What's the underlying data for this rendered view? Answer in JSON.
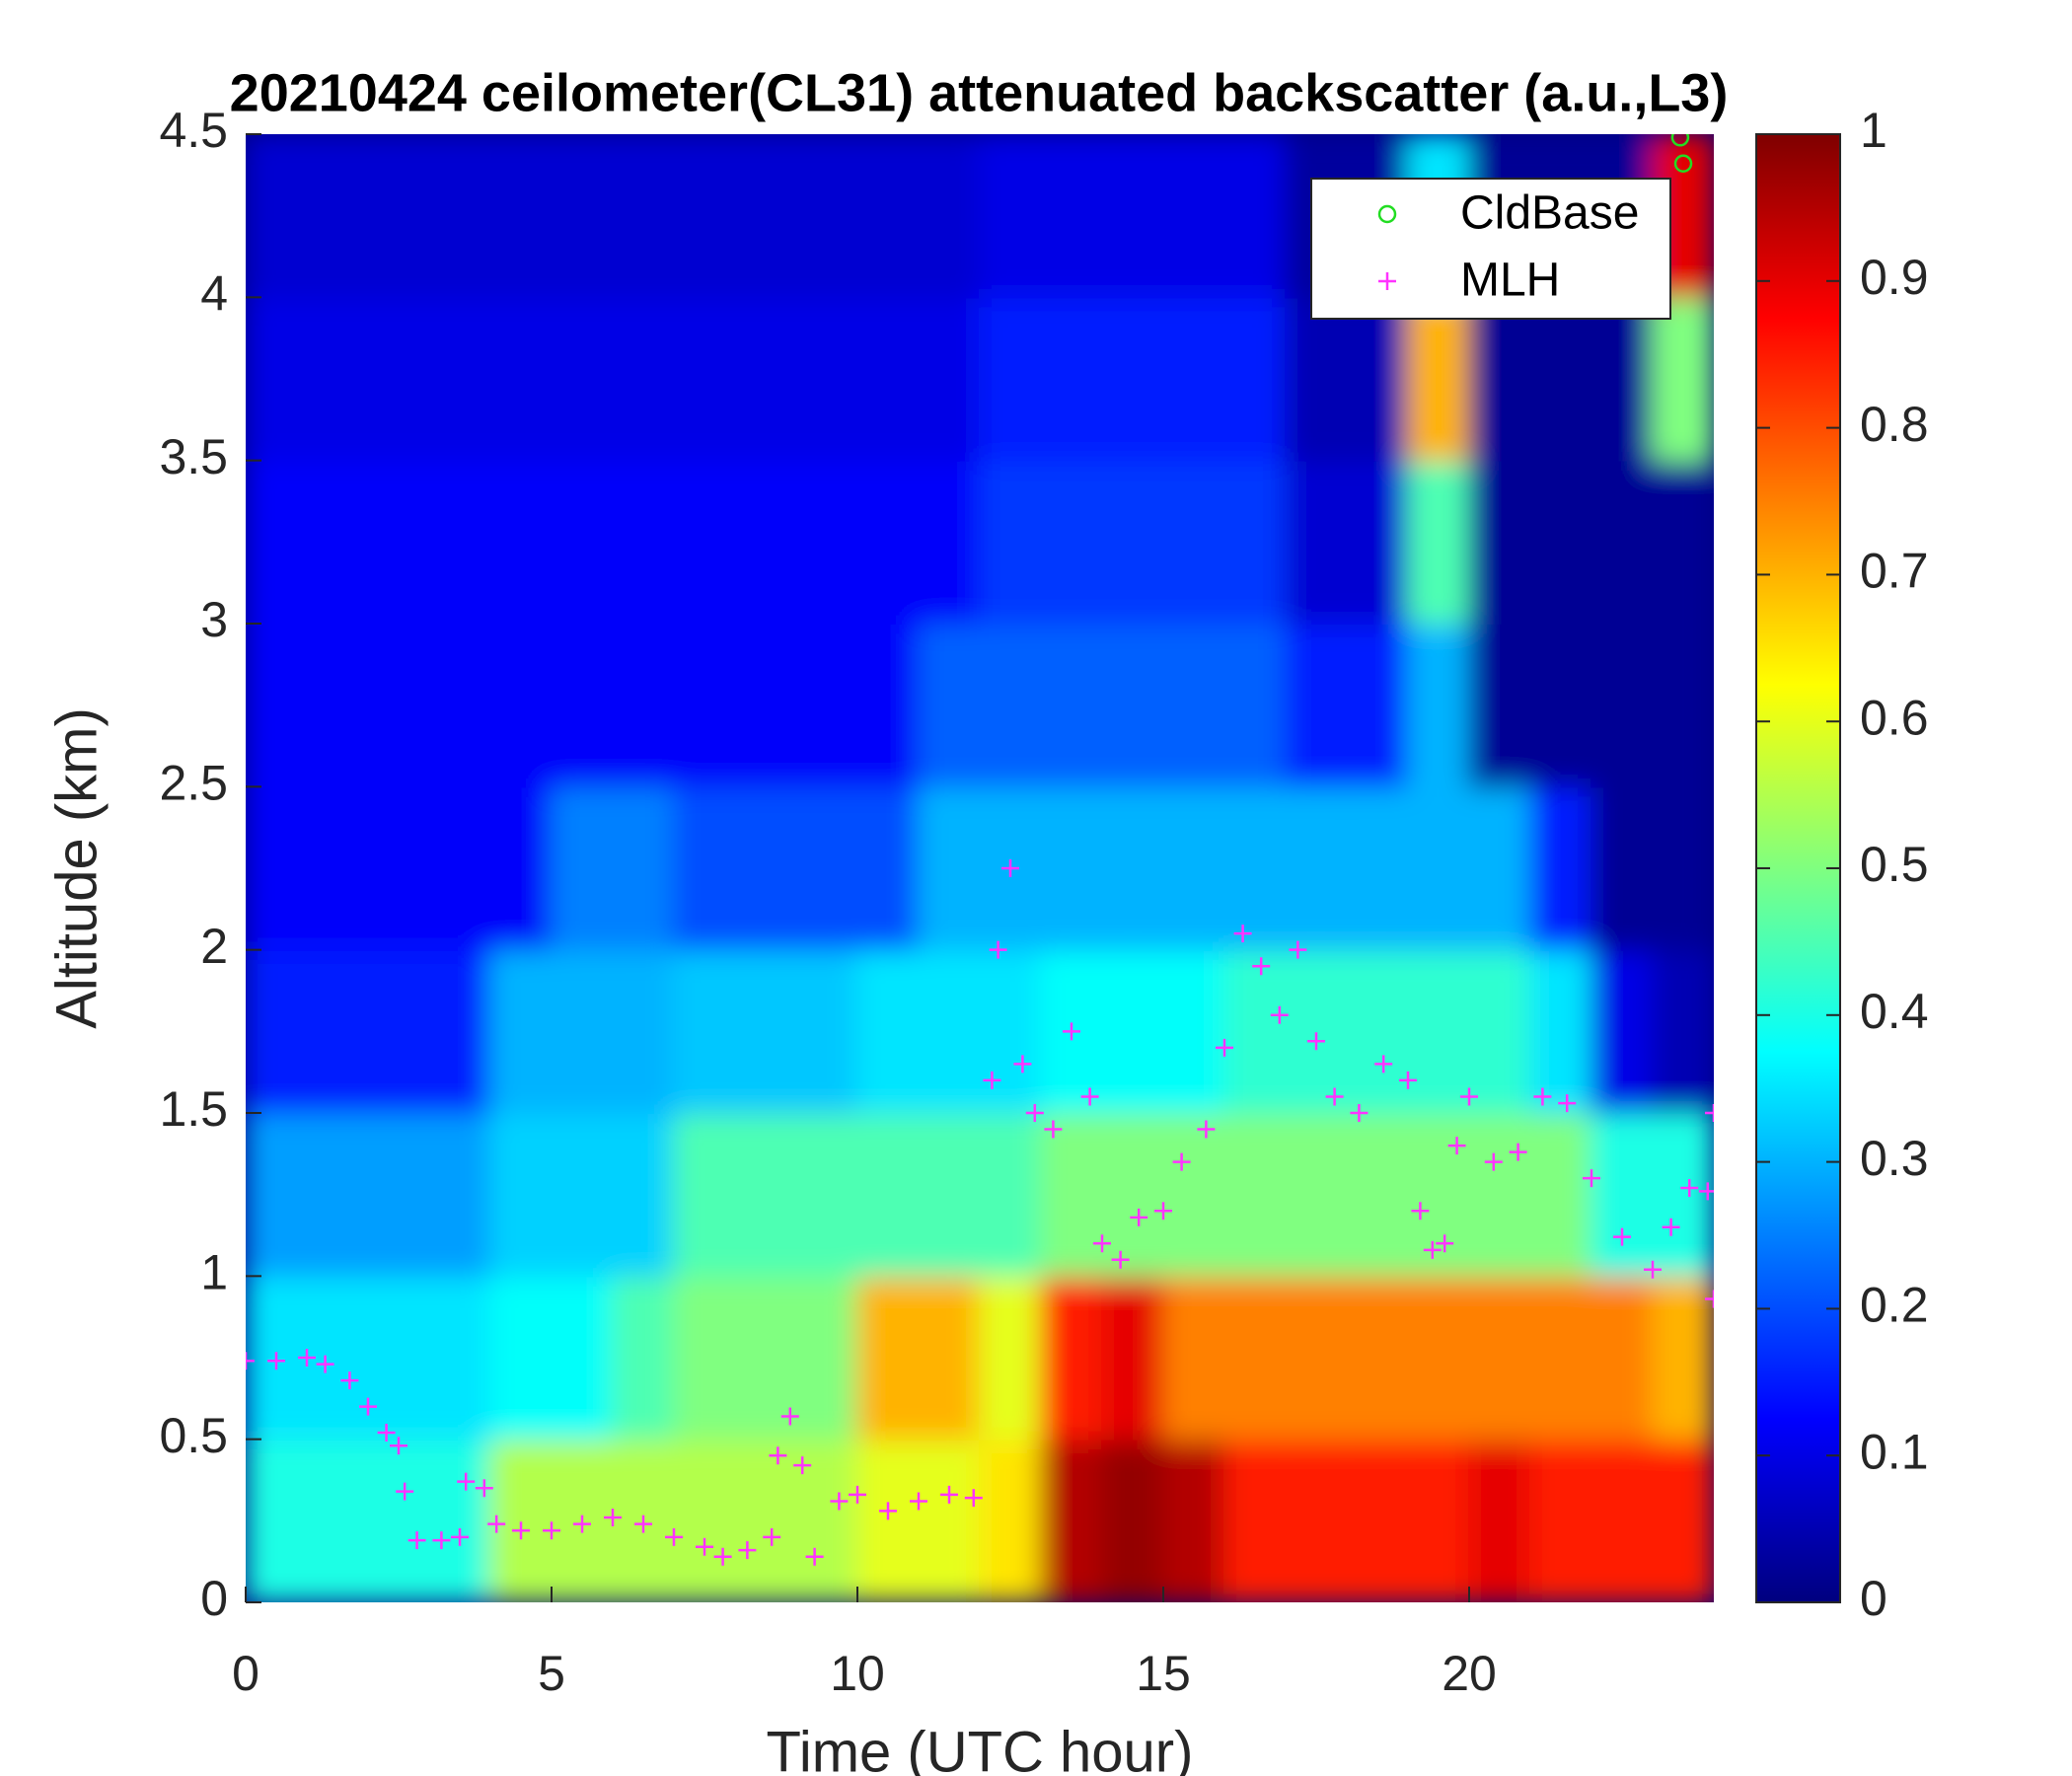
{
  "chart_data": {
    "type": "heatmap",
    "title": "20210424 ceilometer(CL31) attenuated backscatter (a.u.,L3)",
    "xlabel": "Time (UTC hour)",
    "ylabel": "Altitude (km)",
    "colormap": "jet",
    "x": [
      0.5,
      1.5,
      2.5,
      3.5,
      4.5,
      5.5,
      6.5,
      7.5,
      8.5,
      9.5,
      10.5,
      11.5,
      12.5,
      13.5,
      14.5,
      15.5,
      16.5,
      17.5,
      18.5,
      19.5,
      20.5,
      21.5,
      22.5,
      23.5
    ],
    "y": [
      0.25,
      0.75,
      1.25,
      1.75,
      2.25,
      2.75,
      3.25,
      3.75,
      4.25
    ],
    "z": [
      [
        0.4,
        0.4,
        0.4,
        0.4,
        0.55,
        0.55,
        0.55,
        0.55,
        0.55,
        0.55,
        0.6,
        0.6,
        0.65,
        0.95,
        0.98,
        0.95,
        0.85,
        0.85,
        0.85,
        0.85,
        0.9,
        0.85,
        0.85,
        0.85
      ],
      [
        0.35,
        0.35,
        0.35,
        0.35,
        0.38,
        0.38,
        0.45,
        0.5,
        0.5,
        0.5,
        0.7,
        0.7,
        0.6,
        0.85,
        0.9,
        0.75,
        0.75,
        0.75,
        0.75,
        0.75,
        0.75,
        0.75,
        0.75,
        0.7
      ],
      [
        0.28,
        0.28,
        0.28,
        0.28,
        0.33,
        0.33,
        0.33,
        0.45,
        0.45,
        0.45,
        0.45,
        0.45,
        0.45,
        0.5,
        0.5,
        0.5,
        0.5,
        0.5,
        0.5,
        0.5,
        0.5,
        0.5,
        0.4,
        0.4
      ],
      [
        0.15,
        0.15,
        0.15,
        0.15,
        0.3,
        0.3,
        0.3,
        0.32,
        0.32,
        0.32,
        0.35,
        0.35,
        0.35,
        0.38,
        0.38,
        0.38,
        0.42,
        0.42,
        0.42,
        0.42,
        0.42,
        0.35,
        0.1,
        0.05
      ],
      [
        0.12,
        0.12,
        0.12,
        0.12,
        0.12,
        0.25,
        0.25,
        0.2,
        0.2,
        0.2,
        0.2,
        0.3,
        0.3,
        0.3,
        0.3,
        0.3,
        0.3,
        0.3,
        0.3,
        0.3,
        0.3,
        0.15,
        0.02,
        0.02
      ],
      [
        0.12,
        0.12,
        0.12,
        0.12,
        0.12,
        0.12,
        0.12,
        0.12,
        0.12,
        0.12,
        0.12,
        0.22,
        0.22,
        0.22,
        0.22,
        0.22,
        0.22,
        0.15,
        0.15,
        0.3,
        0.02,
        0.02,
        0.02,
        0.02
      ],
      [
        0.12,
        0.12,
        0.12,
        0.12,
        0.12,
        0.12,
        0.12,
        0.12,
        0.12,
        0.12,
        0.12,
        0.12,
        0.18,
        0.18,
        0.18,
        0.18,
        0.18,
        0.08,
        0.08,
        0.45,
        0.02,
        0.02,
        0.02,
        0.02
      ],
      [
        0.1,
        0.1,
        0.1,
        0.1,
        0.1,
        0.1,
        0.1,
        0.1,
        0.1,
        0.1,
        0.1,
        0.1,
        0.15,
        0.15,
        0.15,
        0.15,
        0.15,
        0.05,
        0.05,
        0.7,
        0.02,
        0.02,
        0.02,
        0.5
      ],
      [
        0.08,
        0.08,
        0.08,
        0.08,
        0.08,
        0.08,
        0.08,
        0.08,
        0.08,
        0.08,
        0.08,
        0.08,
        0.1,
        0.1,
        0.1,
        0.1,
        0.1,
        0.03,
        0.03,
        0.35,
        0.02,
        0.02,
        0.02,
        0.9
      ]
    ],
    "clim": [
      0,
      1
    ],
    "cticks": [
      0,
      0.1,
      0.2,
      0.3,
      0.4,
      0.5,
      0.6,
      0.7,
      0.8,
      0.9,
      1
    ],
    "xlim": [
      0,
      24
    ],
    "xticks": [
      0,
      5,
      10,
      15,
      20
    ],
    "ylim": [
      0,
      4.5
    ],
    "yticks": [
      0,
      0.5,
      1,
      1.5,
      2,
      2.5,
      3,
      3.5,
      4,
      4.5
    ],
    "legend": "upper right",
    "series": [
      {
        "name": "CldBase",
        "color": "#22dd22",
        "marker": "o",
        "x": [
          23.45,
          23.5
        ],
        "values": [
          4.49,
          4.41
        ]
      },
      {
        "name": "MLH",
        "color": "#ff33ff",
        "marker": "+",
        "x": [
          0,
          0.5,
          1,
          1.3,
          1.7,
          2,
          2.3,
          2.5,
          2.6,
          2.8,
          3.2,
          3.5,
          3.6,
          3.9,
          4.1,
          4.5,
          5,
          5.5,
          6,
          6.5,
          7,
          7.5,
          7.8,
          8.2,
          8.6,
          8.7,
          8.9,
          9.1,
          9.3,
          9.7,
          10,
          10.5,
          11,
          11.5,
          11.9,
          12.2,
          12.3,
          12.5,
          12.7,
          12.9,
          13.2,
          13.5,
          13.8,
          14,
          14.3,
          14.6,
          15,
          15.3,
          15.7,
          16,
          16.3,
          16.6,
          16.9,
          17.2,
          17.5,
          17.8,
          18.2,
          18.6,
          19,
          19.2,
          19.4,
          19.6,
          19.8,
          20,
          20.4,
          20.8,
          21.2,
          21.6,
          22,
          22.5,
          23,
          23.3,
          23.6,
          23.9,
          24,
          24
        ],
        "values": [
          0.74,
          0.74,
          0.75,
          0.73,
          0.68,
          0.6,
          0.52,
          0.48,
          0.34,
          0.19,
          0.19,
          0.2,
          0.37,
          0.35,
          0.24,
          0.22,
          0.22,
          0.24,
          0.26,
          0.24,
          0.2,
          0.17,
          0.14,
          0.16,
          0.2,
          0.45,
          0.57,
          0.42,
          0.14,
          0.31,
          0.33,
          0.28,
          0.31,
          0.33,
          0.32,
          1.6,
          2.0,
          2.25,
          1.65,
          1.5,
          1.45,
          1.75,
          1.55,
          1.1,
          1.05,
          1.18,
          1.2,
          1.35,
          1.45,
          1.7,
          2.05,
          1.95,
          1.8,
          2.0,
          1.72,
          1.55,
          1.5,
          1.65,
          1.6,
          1.2,
          1.08,
          1.1,
          1.4,
          1.55,
          1.35,
          1.38,
          1.55,
          1.53,
          1.3,
          1.12,
          1.02,
          1.15,
          1.27,
          1.26,
          1.5,
          0.93
        ]
      }
    ]
  }
}
